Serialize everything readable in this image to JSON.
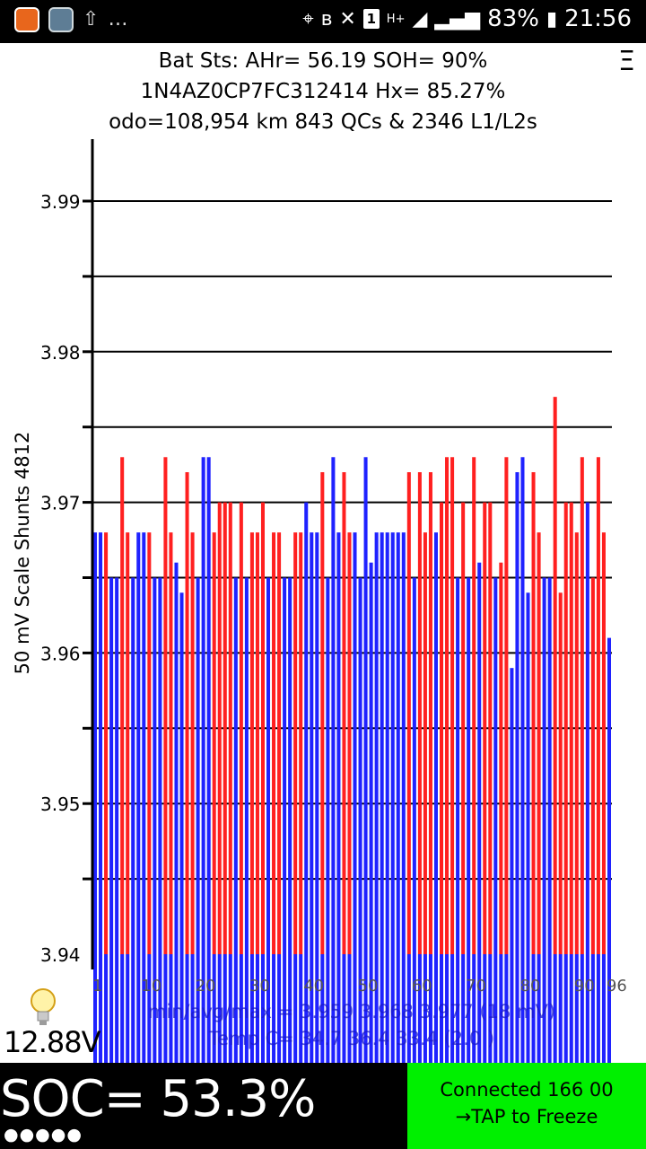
{
  "status_bar": {
    "battery_percent": "83%",
    "time": "21:56",
    "sim_slot": "1",
    "network_type": "H+",
    "icons": [
      "app-icon",
      "app-icon",
      "upload-icon",
      "more-icon",
      "location-icon",
      "bluetooth-icon",
      "mute-icon",
      "sim-icon",
      "network-icon",
      "signal-icon",
      "battery-icon"
    ]
  },
  "header": {
    "line1": "Bat Sts: AHr= 56.19 SOH= 90%",
    "line2": "1N4AZ0CP7FC312414   Hx= 85.27%",
    "line3": "odo=108,954 km  843 QCs  &  2346 L1/L2s"
  },
  "menu_icon": "Ξ",
  "chart_data": {
    "type": "bar",
    "ylabel": "50 mV Scale  Shunts 4812",
    "ylim": [
      3.94,
      3.99
    ],
    "yticks": [
      "3.99",
      "3.98",
      "3.97",
      "3.96",
      "3.95",
      "3.94"
    ],
    "xticks": [
      "1",
      "10",
      "20",
      "30",
      "40",
      "50",
      "60",
      "70",
      "80",
      "90",
      "96"
    ],
    "grid": true,
    "series_colors": {
      "balancing": "#ff2020",
      "normal": "#1f22ff"
    },
    "values": [
      3.968,
      3.968,
      3.968,
      3.965,
      3.965,
      3.973,
      3.968,
      3.965,
      3.968,
      3.968,
      3.968,
      3.965,
      3.965,
      3.973,
      3.968,
      3.966,
      3.964,
      3.972,
      3.968,
      3.965,
      3.973,
      3.973,
      3.968,
      3.97,
      3.97,
      3.97,
      3.965,
      3.97,
      3.965,
      3.968,
      3.968,
      3.97,
      3.965,
      3.968,
      3.968,
      3.965,
      3.965,
      3.968,
      3.968,
      3.97,
      3.968,
      3.968,
      3.972,
      3.965,
      3.973,
      3.968,
      3.972,
      3.968,
      3.968,
      3.965,
      3.973,
      3.966,
      3.968,
      3.968,
      3.968,
      3.968,
      3.968,
      3.968,
      3.972,
      3.965,
      3.972,
      3.968,
      3.972,
      3.968,
      3.97,
      3.973,
      3.973,
      3.965,
      3.97,
      3.965,
      3.973,
      3.966,
      3.97,
      3.97,
      3.965,
      3.966,
      3.973,
      3.959,
      3.972,
      3.973,
      3.964,
      3.972,
      3.968,
      3.965,
      3.965,
      3.977,
      3.964,
      3.97,
      3.97,
      3.968,
      3.973,
      3.97,
      3.965,
      3.973,
      3.968,
      3.961
    ],
    "balancing": [
      0,
      0,
      1,
      0,
      0,
      1,
      1,
      0,
      0,
      0,
      1,
      0,
      0,
      1,
      1,
      0,
      0,
      1,
      1,
      0,
      0,
      0,
      1,
      1,
      1,
      1,
      0,
      1,
      0,
      1,
      1,
      1,
      0,
      1,
      1,
      0,
      0,
      1,
      1,
      0,
      0,
      0,
      1,
      0,
      0,
      0,
      1,
      1,
      0,
      0,
      0,
      0,
      0,
      0,
      0,
      0,
      0,
      0,
      1,
      0,
      1,
      1,
      1,
      0,
      1,
      1,
      1,
      0,
      1,
      0,
      1,
      0,
      1,
      1,
      0,
      1,
      1,
      0,
      0,
      0,
      0,
      1,
      1,
      0,
      0,
      1,
      1,
      1,
      1,
      1,
      1,
      0,
      1,
      1,
      1,
      0
    ],
    "summary_line1": "min/avg/max = 3.959  3.968  3.977   (18 mV)",
    "summary_line2": "Temp C= 34.7  36.4  33.4   (2.0 )"
  },
  "voltage": "12.88V",
  "soc": "SOC= 53.3%",
  "soc_dots": "●●●●●",
  "connection": {
    "line1": "Connected 166 00",
    "line2": "→TAP to Freeze",
    "color": "#00f000"
  }
}
